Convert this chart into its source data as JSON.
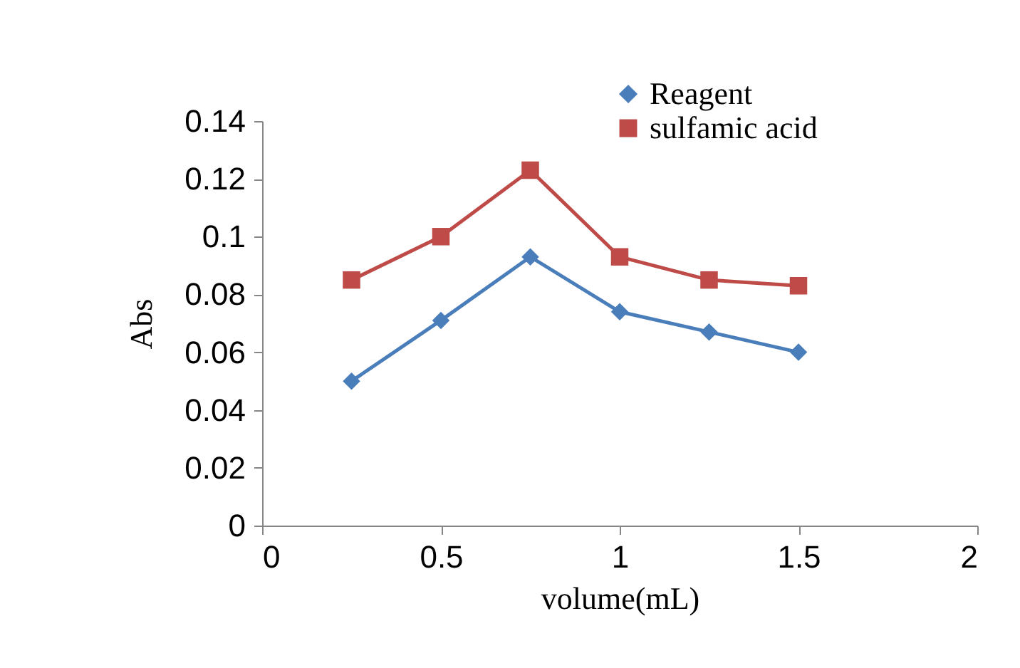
{
  "chart_data": {
    "type": "line",
    "xlabel": "volume(mL)",
    "ylabel": "Abs",
    "x": [
      0.25,
      0.5,
      0.75,
      1,
      1.25,
      1.5
    ],
    "series": [
      {
        "name": "Reagent",
        "color": "#4a7ebb",
        "marker": "diamond",
        "values": [
          0.05,
          0.071,
          0.093,
          0.074,
          0.067,
          0.06
        ]
      },
      {
        "name": "sulfamic acid",
        "color": "#be4b48",
        "marker": "square",
        "values": [
          0.085,
          0.1,
          0.123,
          0.093,
          0.085,
          0.083
        ]
      }
    ],
    "xlim": [
      0,
      2
    ],
    "xticks": [
      0,
      0.5,
      1,
      1.5,
      2
    ],
    "ylim": [
      0,
      0.14
    ],
    "yticks": [
      0,
      0.02,
      0.04,
      0.06,
      0.08,
      0.1,
      0.12,
      0.14
    ],
    "grid": false,
    "legend": "top right",
    "line_style": "solid"
  }
}
